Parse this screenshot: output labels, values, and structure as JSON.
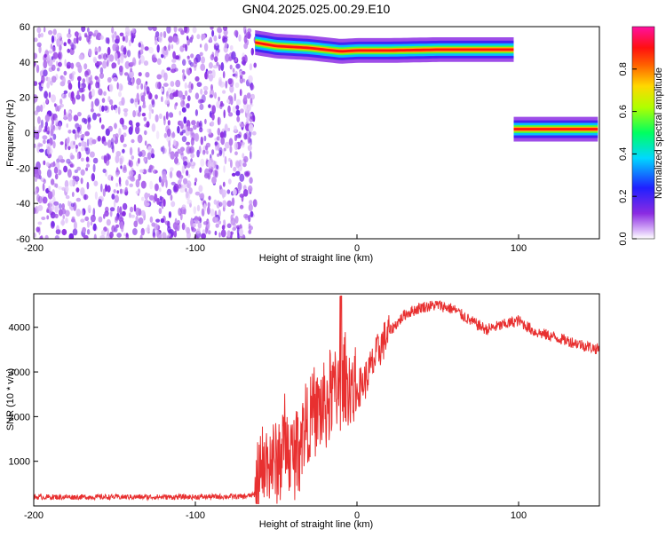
{
  "title": "GN04.2025.025.00.29.E10",
  "chart_data": [
    {
      "type": "heatmap",
      "xlabel": "Height of straight line (km)",
      "ylabel": "Frequency (Hz)",
      "xlim": [
        -200,
        150
      ],
      "ylim": [
        -60,
        60
      ],
      "xticks": [
        -200,
        -100,
        0,
        100
      ],
      "yticks": [
        -60,
        -40,
        -20,
        0,
        20,
        40,
        60
      ],
      "colorbar": {
        "label": "Normalized spectral amplitude",
        "range": [
          0,
          1
        ],
        "ticks": [
          "0.0",
          "0.2",
          "0.4",
          "0.6",
          "0.8"
        ],
        "colormap": "rainbow (purple-blue-cyan-green-yellow-red-magenta)"
      },
      "regions": [
        {
          "name": "noise",
          "x_range": [
            -200,
            -63
          ],
          "freq_range": [
            -60,
            60
          ],
          "amplitude": 0.1
        },
        {
          "name": "direct signal",
          "x_range": [
            -63,
            97
          ],
          "freq_path": [
            [
              -63,
              51
            ],
            [
              -50,
              49
            ],
            [
              -30,
              48
            ],
            [
              -10,
              46
            ],
            [
              0,
              46.5
            ],
            [
              20,
              46.5
            ],
            [
              50,
              47
            ],
            [
              97,
              47
            ]
          ],
          "amplitude": 0.9
        },
        {
          "name": "reflected signal",
          "x_range": [
            97,
            150
          ],
          "freq_path": [
            [
              97,
              2
            ],
            [
              150,
              2
            ]
          ],
          "amplitude": 0.9
        }
      ],
      "grid": false
    },
    {
      "type": "line",
      "xlabel": "Height of straight line (km)",
      "ylabel": "SNR (10 * v/v)",
      "xlim": [
        -200,
        150
      ],
      "ylim": [
        0,
        4750
      ],
      "xticks": [
        -200,
        -100,
        0,
        100
      ],
      "yticks": [
        1000,
        2000,
        3000,
        4000
      ],
      "series_color": "#e83030",
      "x": [
        -200,
        -180,
        -160,
        -140,
        -120,
        -100,
        -80,
        -70,
        -63,
        -60,
        -55,
        -50,
        -45,
        -40,
        -35,
        -30,
        -25,
        -20,
        -15,
        -10,
        -5,
        0,
        5,
        10,
        15,
        20,
        25,
        30,
        40,
        50,
        60,
        70,
        80,
        90,
        100,
        110,
        120,
        130,
        140,
        150
      ],
      "values": [
        200,
        200,
        200,
        200,
        200,
        200,
        210,
        210,
        250,
        600,
        1000,
        900,
        1400,
        1000,
        1600,
        1900,
        2100,
        2200,
        2600,
        2700,
        2700,
        2600,
        2800,
        3200,
        3600,
        3900,
        4100,
        4300,
        4450,
        4500,
        4400,
        4150,
        3950,
        4050,
        4150,
        3900,
        3800,
        3700,
        3600,
        3500
      ],
      "grid": false
    }
  ]
}
